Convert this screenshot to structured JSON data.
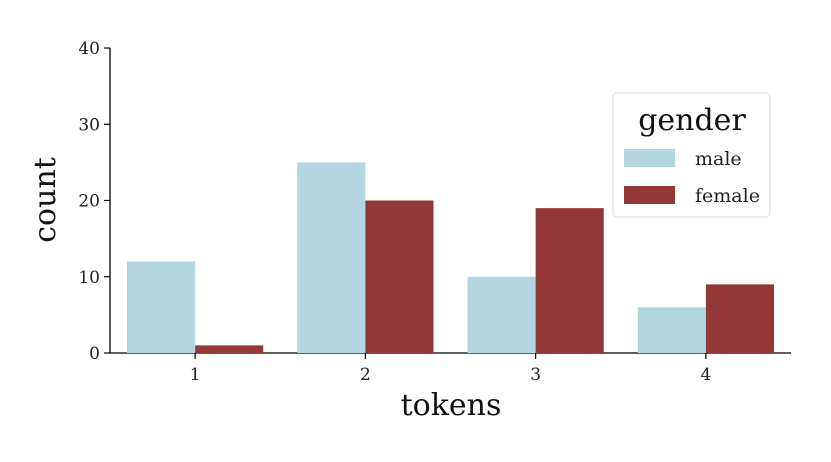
{
  "chart_data": {
    "type": "bar",
    "categories": [
      "1",
      "2",
      "3",
      "4"
    ],
    "series": [
      {
        "name": "male",
        "values": [
          12,
          25,
          10,
          6
        ],
        "color": "#b3d6e0"
      },
      {
        "name": "female",
        "values": [
          1,
          20,
          19,
          9
        ],
        "color": "#943737"
      }
    ],
    "xlabel": "tokens",
    "ylabel": "count",
    "ylim": [
      0,
      40
    ],
    "yticks": [
      "0",
      "10",
      "20",
      "30",
      "40"
    ],
    "grid": false,
    "legend": {
      "title": "gender",
      "position": "top-right"
    }
  }
}
